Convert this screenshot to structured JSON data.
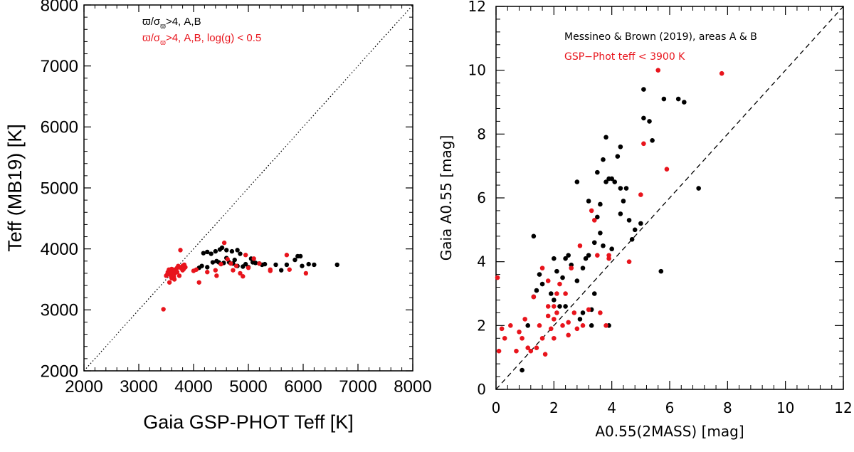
{
  "chart_data": [
    {
      "type": "scatter",
      "xlabel": "Gaia GSP-PHOT Teff [K]",
      "ylabel": "Teff (MB19) [K]",
      "xlim": [
        2000,
        8000
      ],
      "ylim": [
        2000,
        8000
      ],
      "x_ticks": [
        "2000",
        "3000",
        "4000",
        "5000",
        "6000",
        "7000",
        "8000"
      ],
      "y_ticks": [
        "2000",
        "3000",
        "4000",
        "5000",
        "6000",
        "7000",
        "8000"
      ],
      "reference_line": "dotted one-to-one line",
      "legend": [
        {
          "label": "ϖ/σ",
          "sub": "ϖ",
          "rest": ">4, A,B",
          "color": "#000000"
        },
        {
          "label": "ϖ/σ",
          "sub": "ϖ",
          "rest": ">4, A,B, log(g) < 0.5",
          "color": "#e8141c"
        }
      ],
      "series": [
        {
          "name": "black",
          "color": "#000000",
          "points": [
            [
              4180,
              3930
            ],
            [
              4250,
              3950
            ],
            [
              4320,
              3920
            ],
            [
              4400,
              3960
            ],
            [
              4480,
              3990
            ],
            [
              4520,
              4020
            ],
            [
              4600,
              3980
            ],
            [
              4700,
              3960
            ],
            [
              4800,
              3980
            ],
            [
              4850,
              3920
            ],
            [
              4600,
              3850
            ],
            [
              4460,
              3780
            ],
            [
              4550,
              3770
            ],
            [
              4650,
              3780
            ],
            [
              4720,
              3760
            ],
            [
              4800,
              3720
            ],
            [
              4900,
              3710
            ],
            [
              5000,
              3700
            ],
            [
              5080,
              3780
            ],
            [
              5130,
              3770
            ],
            [
              5200,
              3760
            ],
            [
              5250,
              3740
            ],
            [
              5300,
              3750
            ],
            [
              4100,
              3690
            ],
            [
              4150,
              3720
            ],
            [
              4250,
              3700
            ],
            [
              4350,
              3780
            ],
            [
              4420,
              3800
            ],
            [
              5500,
              3740
            ],
            [
              5600,
              3650
            ],
            [
              5700,
              3740
            ],
            [
              5850,
              3820
            ],
            [
              5900,
              3880
            ],
            [
              5950,
              3880
            ],
            [
              5980,
              3720
            ],
            [
              6100,
              3750
            ],
            [
              6200,
              3740
            ],
            [
              6620,
              3740
            ],
            [
              4750,
              3820
            ],
            [
              5050,
              3840
            ],
            [
              4950,
              3750
            ]
          ]
        },
        {
          "name": "red",
          "color": "#e8141c",
          "points": [
            [
              3450,
              3010
            ],
            [
              3760,
              3980
            ],
            [
              3500,
              3560
            ],
            [
              3530,
              3620
            ],
            [
              3550,
              3660
            ],
            [
              3580,
              3650
            ],
            [
              3600,
              3670
            ],
            [
              3620,
              3640
            ],
            [
              3650,
              3660
            ],
            [
              3680,
              3650
            ],
            [
              3700,
              3690
            ],
            [
              3720,
              3720
            ],
            [
              3740,
              3700
            ],
            [
              3780,
              3680
            ],
            [
              3800,
              3650
            ],
            [
              3820,
              3670
            ],
            [
              3850,
              3700
            ],
            [
              3520,
              3580
            ],
            [
              3560,
              3600
            ],
            [
              3590,
              3550
            ],
            [
              3620,
              3580
            ],
            [
              3640,
              3540
            ],
            [
              3660,
              3600
            ],
            [
              3700,
              3620
            ],
            [
              3740,
              3560
            ],
            [
              3560,
              3450
            ],
            [
              3600,
              3520
            ],
            [
              3650,
              3500
            ],
            [
              3800,
              3720
            ],
            [
              3830,
              3740
            ],
            [
              4000,
              3640
            ],
            [
              4050,
              3660
            ],
            [
              4100,
              3450
            ],
            [
              4250,
              3620
            ],
            [
              4400,
              3650
            ],
            [
              4500,
              3750
            ],
            [
              4560,
              4100
            ],
            [
              4620,
              3830
            ],
            [
              4680,
              3760
            ],
            [
              4720,
              3650
            ],
            [
              4780,
              3720
            ],
            [
              4850,
              3600
            ],
            [
              4900,
              3550
            ],
            [
              4950,
              3900
            ],
            [
              5000,
              3690
            ],
            [
              5100,
              3840
            ],
            [
              5200,
              3760
            ],
            [
              5400,
              3660
            ],
            [
              5700,
              3900
            ],
            [
              5750,
              3660
            ],
            [
              6050,
              3600
            ],
            [
              5400,
              3640
            ],
            [
              4420,
              3560
            ]
          ]
        }
      ]
    },
    {
      "type": "scatter",
      "xlabel": "A0.55(2MASS) [mag]",
      "ylabel": "Gaia A0.55 [mag]",
      "xlim": [
        0,
        12
      ],
      "ylim": [
        0,
        12
      ],
      "x_ticks": [
        "0",
        "2",
        "4",
        "6",
        "8",
        "10",
        "12"
      ],
      "y_ticks": [
        "0",
        "2",
        "4",
        "6",
        "8",
        "10",
        "12"
      ],
      "reference_line": "dashed one-to-one line",
      "legend": [
        {
          "label": "Messineo & Brown (2019), areas A & B",
          "color": "#000000"
        },
        {
          "label": "GSP−Phot teff < 3900 K",
          "color": "#e8141c"
        }
      ],
      "series": [
        {
          "name": "black",
          "color": "#000000",
          "points": [
            [
              0.9,
              0.6
            ],
            [
              1.1,
              2.0
            ],
            [
              1.3,
              2.9
            ],
            [
              1.4,
              3.1
            ],
            [
              1.5,
              3.6
            ],
            [
              1.6,
              3.3
            ],
            [
              1.3,
              4.8
            ],
            [
              1.9,
              3.0
            ],
            [
              2.0,
              2.8
            ],
            [
              2.1,
              3.7
            ],
            [
              2.2,
              2.6
            ],
            [
              2.3,
              3.5
            ],
            [
              2.4,
              4.1
            ],
            [
              2.5,
              4.2
            ],
            [
              2.6,
              3.9
            ],
            [
              2.8,
              6.5
            ],
            [
              2.9,
              2.2
            ],
            [
              3.0,
              3.8
            ],
            [
              3.1,
              4.1
            ],
            [
              3.2,
              4.2
            ],
            [
              3.3,
              2.5
            ],
            [
              3.3,
              2.0
            ],
            [
              3.4,
              4.6
            ],
            [
              3.5,
              5.4
            ],
            [
              3.5,
              6.8
            ],
            [
              3.6,
              5.8
            ],
            [
              3.7,
              4.5
            ],
            [
              3.8,
              6.5
            ],
            [
              3.9,
              6.6
            ],
            [
              4.0,
              6.6
            ],
            [
              4.1,
              6.5
            ],
            [
              4.2,
              7.3
            ],
            [
              4.3,
              5.5
            ],
            [
              4.4,
              5.9
            ],
            [
              4.5,
              6.3
            ],
            [
              4.6,
              5.3
            ],
            [
              4.7,
              4.7
            ],
            [
              4.8,
              5.0
            ],
            [
              5.1,
              9.4
            ],
            [
              5.1,
              8.5
            ],
            [
              5.3,
              8.4
            ],
            [
              5.4,
              7.8
            ],
            [
              5.8,
              9.1
            ],
            [
              6.3,
              9.1
            ],
            [
              6.5,
              9.0
            ],
            [
              7.0,
              6.3
            ],
            [
              5.7,
              3.7
            ],
            [
              3.9,
              2.0
            ],
            [
              3.7,
              7.2
            ],
            [
              3.8,
              7.9
            ],
            [
              4.3,
              7.6
            ],
            [
              3.2,
              5.9
            ],
            [
              3.6,
              4.9
            ],
            [
              5.0,
              5.2
            ],
            [
              4.0,
              4.4
            ],
            [
              3.4,
              3.0
            ],
            [
              2.0,
              4.1
            ],
            [
              2.4,
              2.6
            ],
            [
              2.8,
              3.4
            ],
            [
              3.0,
              2.4
            ],
            [
              4.3,
              6.3
            ]
          ]
        },
        {
          "name": "red",
          "color": "#e8141c",
          "points": [
            [
              0.05,
              3.5
            ],
            [
              0.1,
              1.2
            ],
            [
              0.2,
              1.9
            ],
            [
              0.3,
              1.6
            ],
            [
              0.5,
              2.0
            ],
            [
              0.7,
              1.2
            ],
            [
              0.8,
              1.8
            ],
            [
              0.9,
              1.6
            ],
            [
              1.0,
              2.2
            ],
            [
              1.1,
              1.3
            ],
            [
              1.2,
              1.2
            ],
            [
              1.3,
              2.9
            ],
            [
              1.4,
              1.3
            ],
            [
              1.5,
              2.0
            ],
            [
              1.6,
              1.6
            ],
            [
              1.7,
              1.1
            ],
            [
              1.8,
              2.6
            ],
            [
              1.8,
              2.3
            ],
            [
              1.9,
              1.9
            ],
            [
              2.0,
              2.2
            ],
            [
              2.0,
              1.6
            ],
            [
              2.1,
              2.4
            ],
            [
              2.2,
              3.3
            ],
            [
              2.3,
              2.0
            ],
            [
              2.4,
              3.0
            ],
            [
              2.5,
              1.7
            ],
            [
              2.6,
              3.8
            ],
            [
              2.7,
              2.4
            ],
            [
              2.8,
              1.9
            ],
            [
              3.0,
              2.0
            ],
            [
              3.2,
              2.5
            ],
            [
              3.4,
              5.3
            ],
            [
              3.5,
              4.2
            ],
            [
              3.6,
              2.4
            ],
            [
              3.8,
              2.0
            ],
            [
              3.9,
              4.2
            ],
            [
              4.6,
              4.0
            ],
            [
              5.0,
              6.1
            ],
            [
              5.1,
              7.7
            ],
            [
              5.6,
              10.0
            ],
            [
              5.9,
              6.9
            ],
            [
              7.8,
              9.9
            ],
            [
              2.9,
              4.5
            ],
            [
              3.3,
              5.6
            ],
            [
              1.8,
              3.4
            ],
            [
              2.1,
              3.0
            ],
            [
              1.6,
              3.8
            ],
            [
              2.0,
              2.6
            ],
            [
              3.9,
              4.1
            ],
            [
              2.5,
              2.1
            ]
          ]
        }
      ]
    }
  ]
}
